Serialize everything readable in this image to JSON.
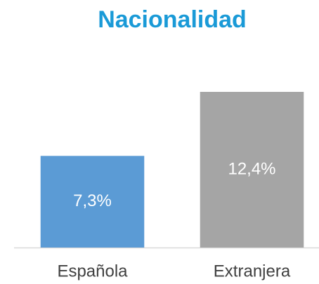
{
  "chart_data": {
    "type": "bar",
    "title": "Nacionalidad",
    "categories": [
      "Española",
      "Extranjera"
    ],
    "values": [
      7.3,
      12.4
    ],
    "value_labels": [
      "7,3%",
      "12,4%"
    ],
    "colors": [
      "#5b9bd5",
      "#a5a5a5"
    ]
  }
}
